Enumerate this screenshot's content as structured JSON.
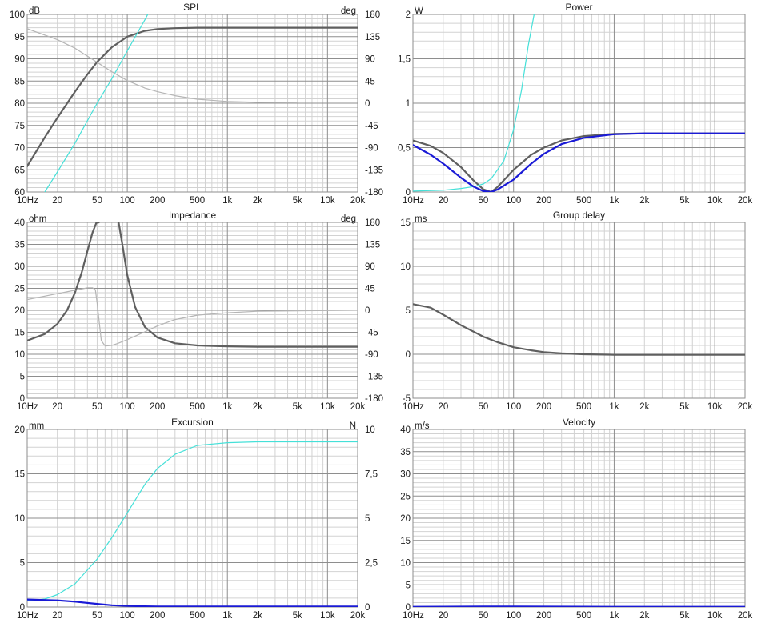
{
  "colors": {
    "background": "#ffffff",
    "grid_minor": "#d2d2d2",
    "grid_major": "#8e8e8e",
    "frame": "#8e8e8e",
    "dark_gray": "#5f5f5f",
    "light_gray": "#b5b5b5",
    "cyan": "#45e0d8",
    "blue": "#1a1ad6"
  },
  "chart_data": [
    {
      "type": "line",
      "title": "SPL",
      "xlabel_ticks": [
        "10Hz",
        "20",
        "50",
        "100",
        "200",
        "500",
        "1k",
        "2k",
        "5k",
        "10k",
        "20k"
      ],
      "x_scale": "log",
      "xlim": [
        10,
        20000
      ],
      "left_unit": "dB",
      "ylim": [
        60,
        100
      ],
      "y_ticks": [
        "60",
        "65",
        "70",
        "75",
        "80",
        "85",
        "90",
        "95",
        "100"
      ],
      "right_unit": "deg",
      "y2lim": [
        -180,
        180
      ],
      "y2_ticks": [
        "-180",
        "-135",
        "-90",
        "-45",
        "0",
        "45",
        "90",
        "135",
        "180"
      ],
      "series": [
        {
          "color": "dark_gray",
          "axis": "left",
          "width": 2.2,
          "x": [
            10,
            15,
            20,
            30,
            40,
            50,
            70,
            100,
            150,
            200,
            300,
            500,
            1000,
            2000,
            5000,
            10000,
            20000
          ],
          "y": [
            65.8,
            72.3,
            76.7,
            82.6,
            86.5,
            89.3,
            92.6,
            95.0,
            96.3,
            96.7,
            96.9,
            97.0,
            97.0,
            97.0,
            97.0,
            97.0,
            97.0
          ]
        },
        {
          "color": "cyan",
          "axis": "left",
          "width": 1.2,
          "x": [
            15,
            20,
            30,
            50,
            70,
            100,
            150,
            160
          ],
          "y": [
            60,
            64.5,
            71,
            80,
            85.5,
            91.8,
            98.8,
            100
          ]
        },
        {
          "color": "light_gray",
          "axis": "left",
          "width": 1.2,
          "x": [
            10,
            20,
            30,
            50,
            70,
            100,
            150,
            200,
            300,
            500,
            1000,
            2000,
            5000
          ],
          "y": [
            96.8,
            94.3,
            92.4,
            89.2,
            87.1,
            85.1,
            83.4,
            82.6,
            81.7,
            80.9,
            80.4,
            80.2,
            80.1
          ]
        }
      ]
    },
    {
      "type": "line",
      "title": "Power",
      "xlabel_ticks": [
        "10Hz",
        "20",
        "50",
        "100",
        "200",
        "500",
        "1k",
        "2k",
        "5k",
        "10k",
        "20k"
      ],
      "x_scale": "log",
      "xlim": [
        10,
        20000
      ],
      "left_unit": "W",
      "ylim": [
        0,
        2
      ],
      "y_ticks": [
        "0",
        "0,5",
        "1",
        "1,5",
        "2"
      ],
      "series": [
        {
          "color": "dark_gray",
          "axis": "left",
          "width": 2.2,
          "x": [
            10,
            15,
            20,
            30,
            40,
            50,
            60,
            70,
            100,
            150,
            200,
            300,
            500,
            1000,
            2000,
            5000,
            20000
          ],
          "y": [
            0.58,
            0.52,
            0.44,
            0.28,
            0.13,
            0.03,
            0.0,
            0.06,
            0.25,
            0.42,
            0.5,
            0.58,
            0.63,
            0.655,
            0.66,
            0.66,
            0.66
          ]
        },
        {
          "color": "cyan",
          "axis": "left",
          "width": 1.2,
          "x": [
            10,
            20,
            30,
            40,
            50,
            60,
            80,
            100,
            120,
            140,
            160
          ],
          "y": [
            0.01,
            0.02,
            0.04,
            0.06,
            0.09,
            0.15,
            0.35,
            0.7,
            1.15,
            1.65,
            2.0
          ]
        },
        {
          "color": "blue",
          "axis": "left",
          "width": 2.2,
          "x": [
            10,
            15,
            20,
            30,
            40,
            50,
            60,
            70,
            100,
            150,
            200,
            300,
            500,
            1000,
            2000,
            5000,
            20000
          ],
          "y": [
            0.53,
            0.42,
            0.32,
            0.16,
            0.06,
            0.01,
            0.0,
            0.03,
            0.14,
            0.32,
            0.43,
            0.54,
            0.61,
            0.65,
            0.66,
            0.66,
            0.66
          ]
        }
      ]
    },
    {
      "type": "line",
      "title": "Impedance",
      "xlabel_ticks": [
        "10Hz",
        "20",
        "50",
        "100",
        "200",
        "500",
        "1k",
        "2k",
        "5k",
        "10k",
        "20k"
      ],
      "x_scale": "log",
      "xlim": [
        10,
        20000
      ],
      "left_unit": "ohm",
      "ylim": [
        0,
        40
      ],
      "y_ticks": [
        "0",
        "5",
        "10",
        "15",
        "20",
        "25",
        "30",
        "35",
        "40"
      ],
      "right_unit": "deg",
      "y2lim": [
        -180,
        180
      ],
      "y2_ticks": [
        "-180",
        "-135",
        "-90",
        "-45",
        "0",
        "45",
        "90",
        "135",
        "180"
      ],
      "series": [
        {
          "color": "dark_gray",
          "axis": "left",
          "width": 2.2,
          "x": [
            10,
            15,
            20,
            25,
            30,
            35,
            40,
            45,
            49,
            52
          ],
          "y": [
            13.1,
            14.6,
            16.9,
            20.0,
            24.0,
            28.6,
            33.5,
            37.7,
            39.9,
            40.0
          ]
        },
        {
          "color": "dark_gray",
          "axis": "left",
          "width": 2.2,
          "x": [
            82,
            90,
            100,
            120,
            150,
            200,
            300,
            500,
            1000,
            2000,
            5000,
            20000
          ],
          "y": [
            40.0,
            34.5,
            28.0,
            20.7,
            16.2,
            13.8,
            12.5,
            12.0,
            11.8,
            11.7,
            11.7,
            11.7
          ]
        },
        {
          "color": "light_gray",
          "axis": "right",
          "width": 1.2,
          "x": [
            10,
            20,
            30,
            40,
            45,
            48,
            50,
            55,
            60,
            70,
            80,
            100,
            150,
            200,
            300,
            500,
            1000,
            2000,
            5000,
            20000
          ],
          "y": [
            22,
            34,
            41,
            46,
            46,
            42,
            15,
            -62,
            -73,
            -72,
            -68,
            -60,
            -44,
            -32,
            -19,
            -10,
            -5,
            -2,
            -1,
            0
          ]
        }
      ]
    },
    {
      "type": "line",
      "title": "Group delay",
      "xlabel_ticks": [
        "10Hz",
        "20",
        "50",
        "100",
        "200",
        "500",
        "1k",
        "2k",
        "5k",
        "10k",
        "20k"
      ],
      "x_scale": "log",
      "xlim": [
        10,
        20000
      ],
      "left_unit": "ms",
      "ylim": [
        -5,
        15
      ],
      "y_ticks": [
        "-5",
        "0",
        "5",
        "10",
        "15"
      ],
      "series": [
        {
          "color": "dark_gray",
          "axis": "left",
          "width": 2.2,
          "x": [
            10,
            15,
            20,
            30,
            50,
            70,
            100,
            150,
            200,
            300,
            500,
            1000,
            2000,
            5000,
            20000
          ],
          "y": [
            5.7,
            5.3,
            4.5,
            3.3,
            2.0,
            1.35,
            0.8,
            0.45,
            0.25,
            0.1,
            0.0,
            -0.05,
            -0.05,
            -0.05,
            -0.05
          ]
        }
      ]
    },
    {
      "type": "line",
      "title": "Excursion",
      "xlabel_ticks": [
        "10Hz",
        "20",
        "50",
        "100",
        "200",
        "500",
        "1k",
        "2k",
        "5k",
        "10k",
        "20k"
      ],
      "x_scale": "log",
      "xlim": [
        10,
        20000
      ],
      "left_unit": "mm",
      "ylim": [
        0,
        20
      ],
      "y_ticks": [
        "0",
        "5",
        "10",
        "15",
        "20"
      ],
      "right_unit": "N",
      "y2lim": [
        0,
        10
      ],
      "y2_ticks": [
        "0",
        "2,5",
        "5",
        "7,5",
        "10"
      ],
      "series": [
        {
          "color": "cyan",
          "axis": "right",
          "width": 1.2,
          "x": [
            10,
            15,
            20,
            30,
            50,
            70,
            100,
            150,
            200,
            300,
            500,
            1000,
            2000,
            5000,
            20000
          ],
          "y": [
            0.35,
            0.45,
            0.7,
            1.3,
            2.7,
            3.9,
            5.3,
            6.9,
            7.8,
            8.6,
            9.1,
            9.25,
            9.3,
            9.3,
            9.3
          ]
        },
        {
          "color": "blue",
          "axis": "left",
          "width": 2.2,
          "x": [
            10,
            20,
            30,
            50,
            70,
            100,
            150,
            200,
            500,
            1000,
            20000
          ],
          "y": [
            0.85,
            0.75,
            0.6,
            0.35,
            0.2,
            0.12,
            0.08,
            0.06,
            0.05,
            0.05,
            0.05
          ]
        }
      ]
    },
    {
      "type": "line",
      "title": "Velocity",
      "xlabel_ticks": [
        "10Hz",
        "20",
        "50",
        "100",
        "200",
        "500",
        "1k",
        "2k",
        "5k",
        "10k",
        "20k"
      ],
      "x_scale": "log",
      "xlim": [
        10,
        20000
      ],
      "left_unit": "m/s",
      "ylim": [
        0,
        40
      ],
      "y_ticks": [
        "0",
        "5",
        "10",
        "15",
        "20",
        "25",
        "30",
        "35",
        "40"
      ],
      "series": [
        {
          "color": "blue",
          "axis": "left",
          "width": 2.2,
          "x": [
            10,
            20,
            50,
            100,
            500,
            1000,
            20000
          ],
          "y": [
            0.05,
            0.08,
            0.1,
            0.1,
            0.08,
            0.06,
            0.05
          ]
        }
      ]
    }
  ]
}
